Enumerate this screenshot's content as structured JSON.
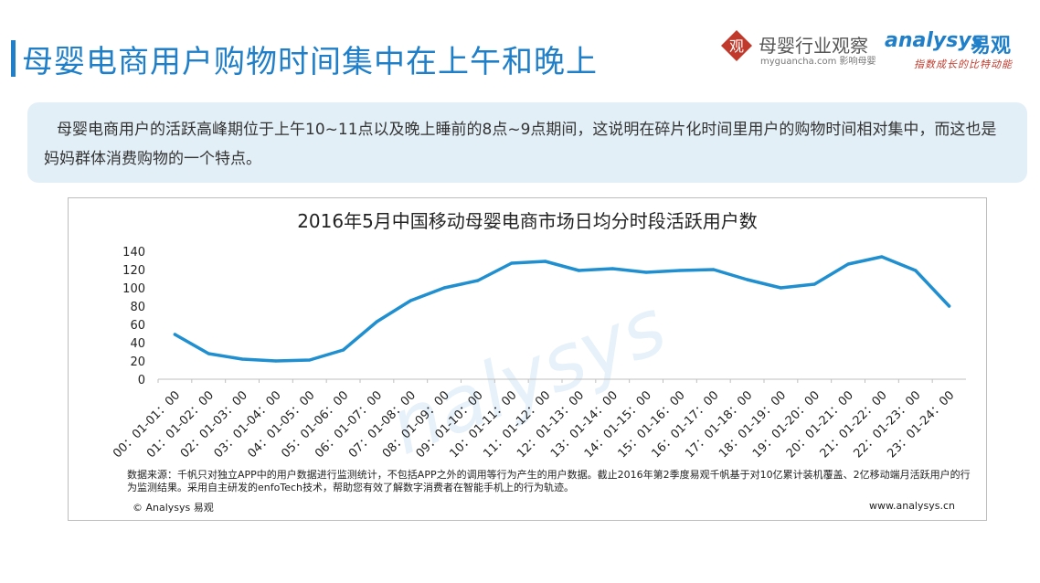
{
  "header": {
    "title": "母婴电商用户购物时间集中在上午和晚上",
    "brand_logo_char": "观",
    "brand_name": "母婴行业观察",
    "brand_url": "myguancha.com 影响母婴",
    "analysys_logo": "analysys",
    "analysys_cn": "易观",
    "slogan": "指数成长的比特动能"
  },
  "summary": {
    "text": "母婴电商用户的活跃高峰期位于上午10~11点以及晚上睡前的8点~9点期间，这说明在碎片化时间里用户的购物时间相对集中，而这也是妈妈群体消费购物的一个特点。",
    "bg_color": "#e3eff7"
  },
  "chart_data": {
    "type": "line",
    "title": "2016年5月中国移动母婴电商市场日均分时段活跃用户数",
    "categories": [
      "00：01-01：00",
      "01：01-02：00",
      "02：01-03：00",
      "03：01-04：00",
      "04：01-05：00",
      "05：01-06：00",
      "06：01-07：00",
      "07：01-08：00",
      "08：01-09：00",
      "09：01-10：00",
      "10：01-11：00",
      "11：01-12：00",
      "12：01-13：00",
      "13：01-14：00",
      "14：01-15：00",
      "15：01-16：00",
      "16：01-17：00",
      "17：01-18：00",
      "18：01-19：00",
      "19：01-20：00",
      "20：01-21：00",
      "21：01-22：00",
      "22：01-23：00",
      "23：01-24：00"
    ],
    "series": [
      {
        "values": [
          49,
          28,
          22,
          20,
          21,
          32,
          63,
          86,
          100,
          108,
          127,
          129,
          119,
          121,
          117,
          119,
          120,
          109,
          100,
          104,
          126,
          134,
          119,
          80
        ]
      }
    ],
    "yticks": [
      "0",
      "20",
      "40",
      "60",
      "80",
      "100",
      "120",
      "140"
    ],
    "ylim": [
      0,
      140
    ],
    "line_color": "#1f8fd0",
    "grid": false,
    "legend": "none"
  },
  "watermark": "nalysys",
  "footer": {
    "source": "数据来源：千帆只对独立APP中的用户数据进行监测统计，不包括APP之外的调用等行为产生的用户数据。截止2016年第2季度易观千帆基于对10亿累计装机覆盖、2亿移动端月活跃用户的行为监测结果。采用自主研发的enfoTech技术，帮助您有效了解数字消费者在智能手机上的行为轨迹。",
    "copyright": "© Analysys 易观",
    "website": "www.analysys.cn"
  }
}
